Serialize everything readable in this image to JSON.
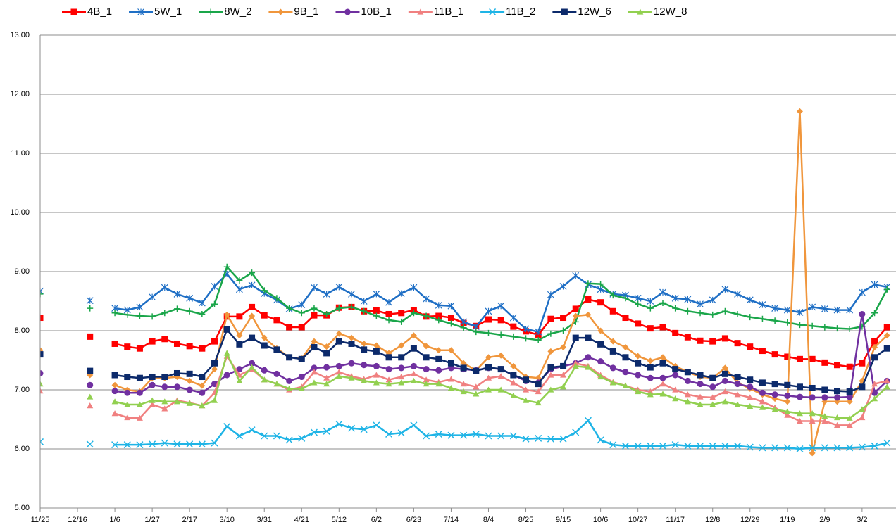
{
  "chart_data": {
    "type": "line",
    "categories": [
      "11/25",
      null,
      null,
      "12/16",
      null,
      null,
      "1/6",
      null,
      null,
      "1/27",
      null,
      null,
      "2/17",
      null,
      null,
      "3/10",
      null,
      null,
      "3/31",
      null,
      null,
      "4/21",
      null,
      null,
      "5/12",
      null,
      null,
      "6/2",
      null,
      null,
      "6/23",
      null,
      null,
      "7/14",
      null,
      null,
      "8/4",
      null,
      null,
      "8/25",
      null,
      null,
      "9/15",
      null,
      null,
      "10/6",
      null,
      null,
      "10/27",
      null,
      null,
      "11/17",
      null,
      null,
      "12/8",
      null,
      null,
      "12/29",
      null,
      null,
      "1/19",
      null,
      null,
      "2/9",
      null,
      null,
      "3/2",
      null,
      null
    ],
    "ylim": [
      5,
      13
    ],
    "yticks": [
      {
        "value": 5,
        "label": "5.00"
      },
      {
        "value": 6,
        "label": "6.00"
      },
      {
        "value": 7,
        "label": "7.00"
      },
      {
        "value": 8,
        "label": "8.00"
      },
      {
        "value": 9,
        "label": "9.00"
      },
      {
        "value": 10,
        "label": "10.00"
      },
      {
        "value": 11,
        "label": "11.00"
      },
      {
        "value": 12,
        "label": "12.00"
      },
      {
        "value": 13,
        "label": "13.00"
      }
    ],
    "grid": true,
    "legend": "top",
    "series": [
      {
        "name": "4B_1",
        "color": "#ff0000",
        "marker": "square",
        "values": [
          8.22,
          null,
          null,
          null,
          7.9,
          null,
          7.78,
          7.73,
          7.7,
          7.82,
          7.86,
          7.78,
          7.74,
          7.7,
          7.82,
          8.24,
          8.24,
          8.4,
          8.26,
          8.18,
          8.06,
          8.06,
          8.26,
          8.26,
          8.39,
          8.4,
          8.33,
          8.34,
          8.28,
          8.3,
          8.35,
          8.24,
          8.25,
          8.22,
          8.13,
          8.08,
          8.19,
          8.18,
          8.07,
          7.99,
          7.93,
          8.2,
          8.22,
          8.37,
          8.53,
          8.48,
          8.33,
          8.22,
          8.12,
          8.04,
          8.06,
          7.96,
          7.89,
          7.83,
          7.82,
          7.87,
          7.79,
          7.73,
          7.66,
          7.6,
          7.56,
          7.52,
          7.52,
          7.46,
          7.42,
          7.39,
          7.45,
          7.82,
          8.06
        ]
      },
      {
        "name": "5W_1",
        "color": "#1f6fc5",
        "marker": "asterisk",
        "values": [
          8.67,
          null,
          null,
          null,
          8.51,
          null,
          8.38,
          8.35,
          8.4,
          8.57,
          8.73,
          8.62,
          8.55,
          8.47,
          8.75,
          8.96,
          8.7,
          8.77,
          8.63,
          8.52,
          8.37,
          8.44,
          8.73,
          8.62,
          8.74,
          8.62,
          8.5,
          8.62,
          8.48,
          8.63,
          8.73,
          8.54,
          8.43,
          8.42,
          8.15,
          8.07,
          8.33,
          8.42,
          8.22,
          8.03,
          7.98,
          8.61,
          8.75,
          8.93,
          8.78,
          8.7,
          8.62,
          8.6,
          8.55,
          8.5,
          8.65,
          8.55,
          8.53,
          8.45,
          8.52,
          8.7,
          8.62,
          8.52,
          8.44,
          8.38,
          8.35,
          8.31,
          8.4,
          8.37,
          8.35,
          8.35,
          8.65,
          8.78,
          8.74
        ]
      },
      {
        "name": "8W_2",
        "color": "#1aa64a",
        "marker": "plus",
        "values": [
          8.62,
          null,
          null,
          null,
          8.38,
          null,
          8.3,
          8.27,
          8.25,
          8.24,
          8.3,
          8.37,
          8.33,
          8.28,
          8.45,
          9.08,
          8.85,
          8.98,
          8.68,
          8.55,
          8.38,
          8.3,
          8.38,
          8.28,
          8.38,
          8.4,
          8.33,
          8.25,
          8.18,
          8.15,
          8.3,
          8.25,
          8.18,
          8.12,
          8.05,
          7.98,
          7.96,
          7.93,
          7.9,
          7.87,
          7.84,
          7.95,
          8.0,
          8.15,
          8.8,
          8.79,
          8.6,
          8.55,
          8.45,
          8.38,
          8.47,
          8.38,
          8.33,
          8.3,
          8.27,
          8.33,
          8.28,
          8.23,
          8.2,
          8.17,
          8.14,
          8.1,
          8.08,
          8.06,
          8.04,
          8.03,
          8.07,
          8.3,
          8.7
        ]
      },
      {
        "name": "9B_1",
        "color": "#f0963c",
        "marker": "diamond",
        "values": [
          7.67,
          null,
          null,
          null,
          7.25,
          null,
          7.08,
          7.0,
          6.97,
          7.2,
          7.2,
          7.22,
          7.15,
          7.07,
          7.35,
          8.27,
          7.92,
          8.25,
          7.88,
          7.7,
          7.55,
          7.53,
          7.82,
          7.73,
          7.95,
          7.88,
          7.78,
          7.75,
          7.62,
          7.75,
          7.92,
          7.74,
          7.67,
          7.67,
          7.45,
          7.33,
          7.55,
          7.58,
          7.4,
          7.22,
          7.2,
          7.65,
          7.72,
          8.25,
          8.27,
          8.0,
          7.82,
          7.72,
          7.57,
          7.49,
          7.55,
          7.4,
          7.3,
          7.22,
          7.2,
          7.37,
          7.12,
          7.02,
          6.92,
          6.85,
          6.8,
          11.71,
          5.93,
          6.8,
          6.8,
          6.8,
          7.15,
          7.72,
          7.92
        ]
      },
      {
        "name": "10B_1",
        "color": "#7030a0",
        "marker": "circle",
        "values": [
          7.28,
          null,
          null,
          null,
          7.08,
          null,
          6.98,
          6.95,
          6.95,
          7.08,
          7.05,
          7.05,
          7.0,
          6.95,
          7.1,
          7.25,
          7.35,
          7.45,
          7.33,
          7.27,
          7.15,
          7.22,
          7.37,
          7.38,
          7.4,
          7.45,
          7.42,
          7.4,
          7.35,
          7.37,
          7.4,
          7.35,
          7.33,
          7.37,
          7.35,
          7.33,
          7.37,
          7.35,
          7.25,
          7.15,
          7.12,
          7.35,
          7.4,
          7.45,
          7.55,
          7.48,
          7.37,
          7.3,
          7.25,
          7.2,
          7.2,
          7.25,
          7.15,
          7.1,
          7.05,
          7.15,
          7.1,
          7.05,
          6.95,
          6.92,
          6.9,
          6.88,
          6.87,
          6.87,
          6.87,
          6.88,
          8.28,
          6.95,
          7.15
        ]
      },
      {
        "name": "11B_1",
        "color": "#f08080",
        "marker": "triangle",
        "values": [
          6.98,
          null,
          null,
          null,
          6.73,
          null,
          6.6,
          6.53,
          6.52,
          6.75,
          6.68,
          6.82,
          6.78,
          6.73,
          6.95,
          7.57,
          7.25,
          7.35,
          7.17,
          7.1,
          7.0,
          7.05,
          7.3,
          7.2,
          7.3,
          7.23,
          7.18,
          7.25,
          7.17,
          7.22,
          7.27,
          7.17,
          7.13,
          7.18,
          7.1,
          7.05,
          7.2,
          7.23,
          7.12,
          7.0,
          6.97,
          7.25,
          7.25,
          7.45,
          7.4,
          7.25,
          7.13,
          7.07,
          7.0,
          6.97,
          7.1,
          7.0,
          6.92,
          6.88,
          6.87,
          6.97,
          6.92,
          6.87,
          6.8,
          6.7,
          6.57,
          6.47,
          6.47,
          6.47,
          6.4,
          6.4,
          6.53,
          7.1,
          7.15
        ]
      },
      {
        "name": "11B_2",
        "color": "#1fb4e6",
        "marker": "x",
        "values": [
          6.12,
          null,
          null,
          null,
          6.08,
          null,
          6.07,
          6.07,
          6.07,
          6.08,
          6.1,
          6.08,
          6.08,
          6.08,
          6.1,
          6.38,
          6.22,
          6.32,
          6.22,
          6.22,
          6.15,
          6.18,
          6.28,
          6.3,
          6.42,
          6.35,
          6.33,
          6.4,
          6.25,
          6.27,
          6.4,
          6.22,
          6.25,
          6.23,
          6.23,
          6.25,
          6.22,
          6.22,
          6.22,
          6.17,
          6.18,
          6.17,
          6.17,
          6.28,
          6.48,
          6.15,
          6.07,
          6.05,
          6.05,
          6.05,
          6.05,
          6.07,
          6.05,
          6.05,
          6.05,
          6.05,
          6.05,
          6.03,
          6.02,
          6.02,
          6.02,
          6.0,
          6.02,
          6.02,
          6.02,
          6.02,
          6.03,
          6.05,
          6.1
        ]
      },
      {
        "name": "12W_6",
        "color": "#0c2a6b",
        "marker": "square",
        "values": [
          7.6,
          null,
          null,
          null,
          7.32,
          null,
          7.25,
          7.22,
          7.2,
          7.22,
          7.22,
          7.28,
          7.27,
          7.22,
          7.45,
          8.02,
          7.77,
          7.88,
          7.75,
          7.68,
          7.55,
          7.52,
          7.72,
          7.62,
          7.82,
          7.78,
          7.68,
          7.65,
          7.55,
          7.55,
          7.7,
          7.55,
          7.52,
          7.45,
          7.37,
          7.32,
          7.38,
          7.35,
          7.25,
          7.17,
          7.1,
          7.38,
          7.4,
          7.88,
          7.88,
          7.77,
          7.65,
          7.55,
          7.45,
          7.38,
          7.45,
          7.35,
          7.3,
          7.25,
          7.2,
          7.27,
          7.22,
          7.17,
          7.12,
          7.1,
          7.08,
          7.05,
          7.03,
          7.0,
          6.98,
          6.97,
          7.05,
          7.55,
          7.7
        ]
      },
      {
        "name": "12W_8",
        "color": "#92d050",
        "marker": "triangle",
        "values": [
          7.1,
          null,
          null,
          null,
          6.88,
          null,
          6.8,
          6.75,
          6.75,
          6.82,
          6.8,
          6.8,
          6.77,
          6.73,
          6.82,
          7.62,
          7.15,
          7.38,
          7.17,
          7.1,
          7.02,
          7.02,
          7.12,
          7.1,
          7.23,
          7.2,
          7.15,
          7.12,
          7.1,
          7.12,
          7.15,
          7.1,
          7.1,
          7.03,
          6.97,
          6.93,
          7.0,
          7.0,
          6.9,
          6.82,
          6.78,
          7.0,
          7.05,
          7.4,
          7.38,
          7.22,
          7.12,
          7.07,
          6.97,
          6.92,
          6.93,
          6.85,
          6.8,
          6.75,
          6.75,
          6.8,
          6.75,
          6.72,
          6.7,
          6.67,
          6.63,
          6.6,
          6.6,
          6.55,
          6.53,
          6.52,
          6.67,
          6.85,
          7.05
        ]
      }
    ]
  }
}
